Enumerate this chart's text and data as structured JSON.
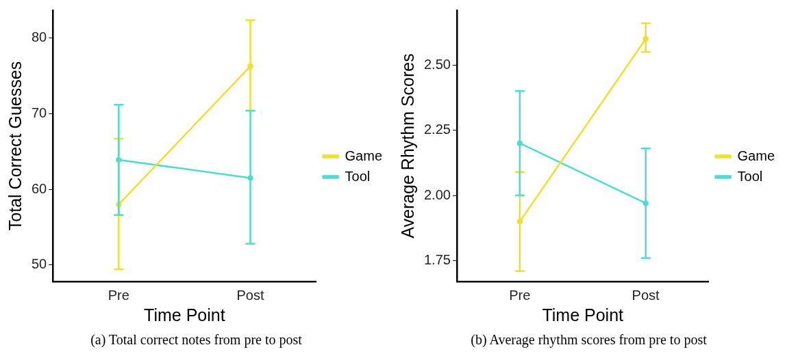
{
  "chart_data": [
    {
      "type": "line",
      "xlabel": "Time Point",
      "ylabel": "Total Correct Guesses",
      "categories": [
        "Pre",
        "Post"
      ],
      "ylim": [
        47.8,
        83.7
      ],
      "yticks": [
        50,
        60,
        70,
        80
      ],
      "grid": false,
      "legend": "right",
      "marker": "circle",
      "line_style": "solid",
      "annotations": [
        "(a) Total correct notes from pre to post"
      ],
      "series": [
        {
          "name": "Game",
          "color": "#f2de2c",
          "values": [
            58.0,
            76.3
          ],
          "errors": [
            [
              49.4,
              66.7
            ],
            [
              70.4,
              82.4
            ]
          ]
        },
        {
          "name": "Tool",
          "color": "#4fdbd4",
          "values": [
            63.9,
            61.5
          ],
          "errors": [
            [
              56.6,
              71.2
            ],
            [
              52.8,
              70.4
            ]
          ]
        }
      ]
    },
    {
      "type": "line",
      "xlabel": "Time Point",
      "ylabel": "Average Rhythm Scores",
      "categories": [
        "Pre",
        "Post"
      ],
      "ylim": [
        1.67,
        2.71
      ],
      "yticks": [
        {
          "value": 1.75,
          "label": "1.75"
        },
        {
          "value": 2,
          "label": "2.00"
        },
        {
          "value": 2.25,
          "label": "2.25"
        },
        {
          "value": 2.5,
          "label": "2.50"
        }
      ],
      "grid": false,
      "legend": "right",
      "marker": "circle",
      "line_style": "solid",
      "annotations": [
        "(b) Average rhythm scores from pre to post"
      ],
      "series": [
        {
          "name": "Game",
          "color": "#f2de2c",
          "values": [
            1.9,
            2.6
          ],
          "errors": [
            [
              1.71,
              2.09
            ],
            [
              2.55,
              2.66
            ]
          ]
        },
        {
          "name": "Tool",
          "color": "#4fdbd4",
          "values": [
            2.2,
            1.97
          ],
          "errors": [
            [
              2.0,
              2.4
            ],
            [
              1.76,
              2.18
            ]
          ]
        }
      ]
    }
  ]
}
